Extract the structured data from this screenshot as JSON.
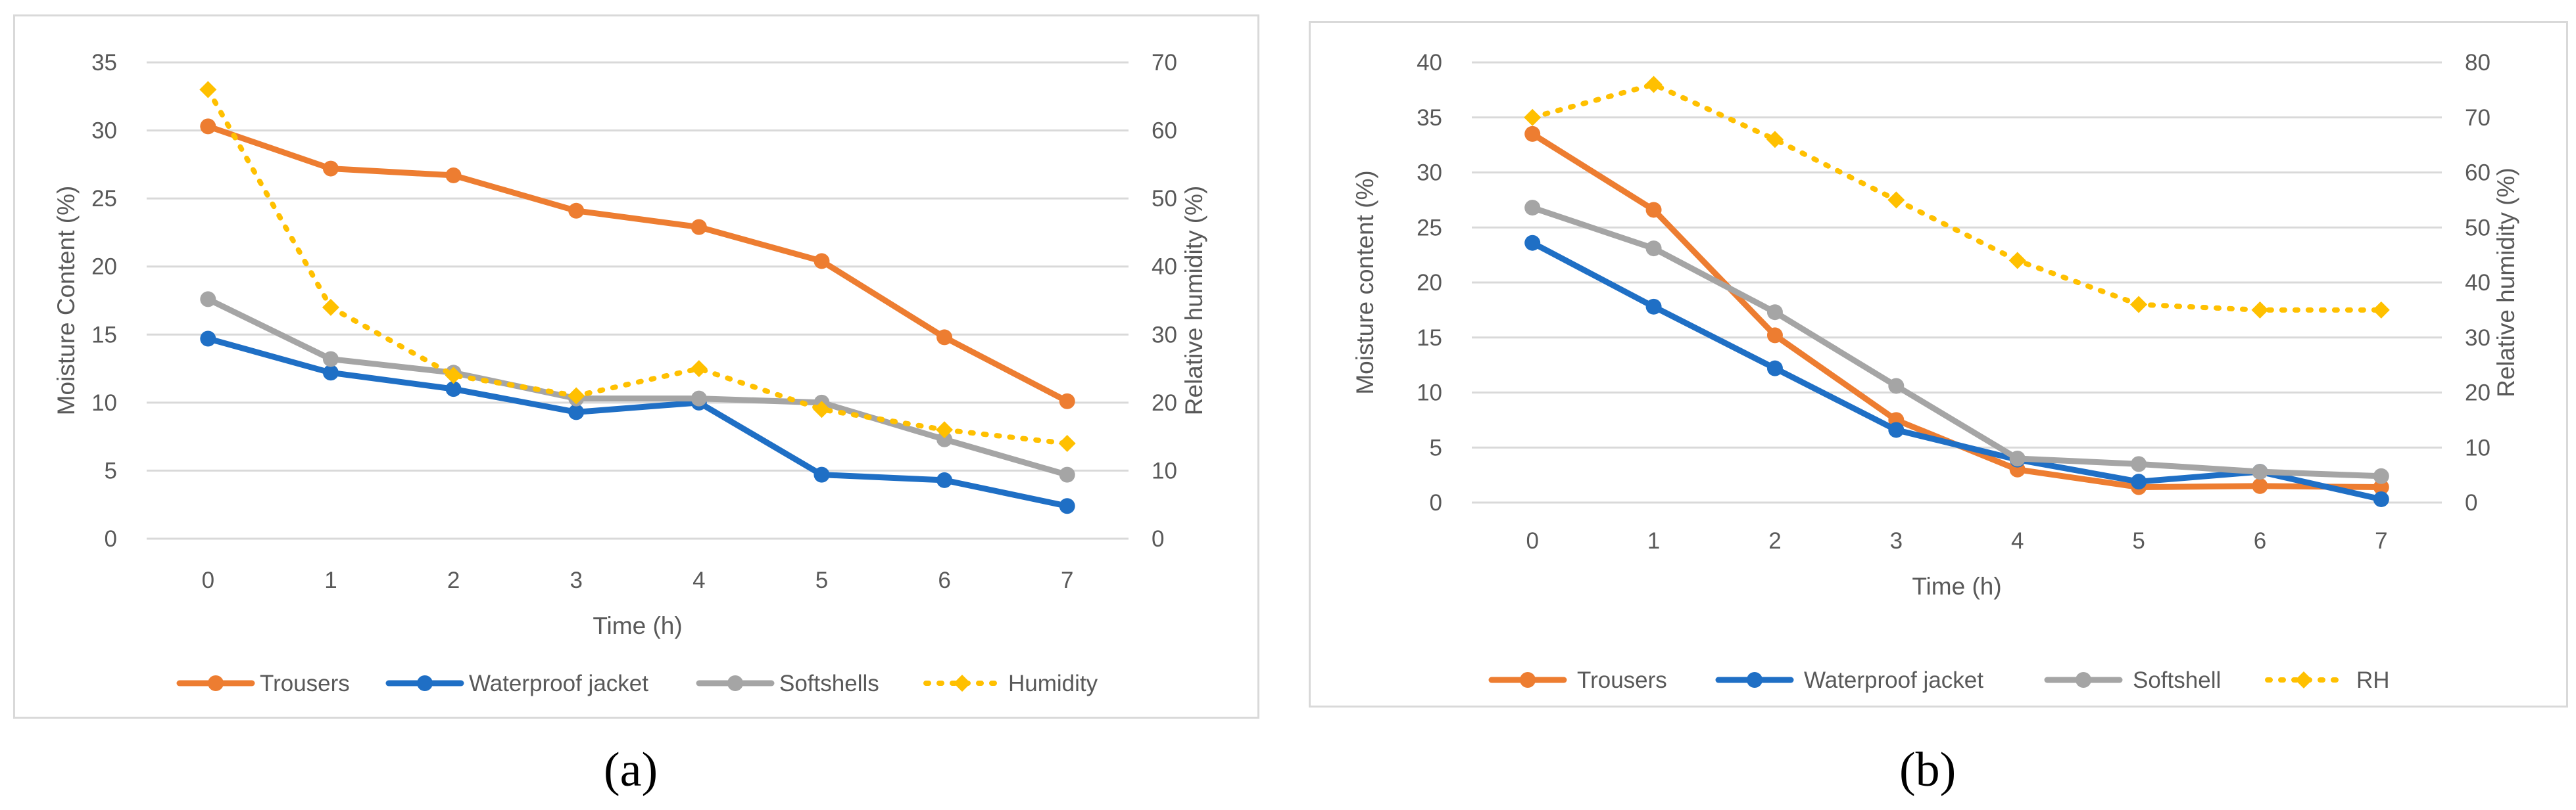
{
  "colors": {
    "trousers": "#ED7D31",
    "jacket": "#1F6FC5",
    "softshell": "#A5A5A5",
    "humidity": "#FFC000",
    "grid": "#d9d9d9",
    "text": "#595959"
  },
  "chart_data": [
    {
      "type": "line",
      "panel_label": "(a)",
      "title": "",
      "xlabel": "Time (h)",
      "ylabel": "Moisture Content (%)",
      "y2label": "Relative humidity (%)",
      "x": [
        0,
        1,
        2,
        3,
        4,
        5,
        6,
        7
      ],
      "ylim": [
        0,
        35
      ],
      "yticks": [
        0,
        5,
        10,
        15,
        20,
        25,
        30,
        35
      ],
      "y2lim": [
        0,
        70
      ],
      "y2ticks": [
        0,
        10,
        20,
        30,
        40,
        50,
        60,
        70
      ],
      "grid": true,
      "legend_position": "bottom",
      "series": [
        {
          "name": "Trousers",
          "axis": "left",
          "color_key": "trousers",
          "style": "solid",
          "values": [
            30.3,
            27.2,
            26.7,
            24.1,
            22.9,
            20.4,
            14.8,
            10.1
          ]
        },
        {
          "name": "Waterproof jacket",
          "axis": "left",
          "color_key": "jacket",
          "style": "solid",
          "values": [
            14.7,
            12.2,
            11.0,
            9.3,
            10.0,
            4.7,
            4.3,
            2.4
          ]
        },
        {
          "name": "Softshells",
          "axis": "left",
          "color_key": "softshell",
          "style": "solid",
          "values": [
            17.6,
            13.2,
            12.2,
            10.3,
            10.3,
            10.0,
            7.3,
            4.7
          ]
        },
        {
          "name": "Humidity",
          "axis": "right",
          "color_key": "humidity",
          "style": "dotted",
          "values": [
            66,
            34,
            24,
            21,
            25,
            19,
            16,
            14
          ]
        }
      ]
    },
    {
      "type": "line",
      "panel_label": "(b)",
      "title": "",
      "xlabel": "Time (h)",
      "ylabel": "Moisture content (%)",
      "y2label": "Relative humidity (%)",
      "x": [
        0,
        1,
        2,
        3,
        4,
        5,
        6,
        7
      ],
      "ylim": [
        0,
        40
      ],
      "yticks": [
        0,
        5,
        10,
        15,
        20,
        25,
        30,
        35,
        40
      ],
      "y2lim": [
        0,
        80
      ],
      "y2ticks": [
        0,
        10,
        20,
        30,
        40,
        50,
        60,
        70,
        80
      ],
      "grid": true,
      "legend_position": "bottom",
      "series": [
        {
          "name": "Trousers",
          "axis": "left",
          "color_key": "trousers",
          "style": "solid",
          "values": [
            33.5,
            26.6,
            15.2,
            7.5,
            3.0,
            1.4,
            1.5,
            1.4
          ]
        },
        {
          "name": "Waterproof jacket",
          "axis": "left",
          "color_key": "jacket",
          "style": "solid",
          "values": [
            23.6,
            17.8,
            12.2,
            6.6,
            3.9,
            1.9,
            2.8,
            0.3
          ]
        },
        {
          "name": "Softshell",
          "axis": "left",
          "color_key": "softshell",
          "style": "solid",
          "values": [
            26.8,
            23.1,
            17.3,
            10.6,
            4.0,
            3.5,
            2.8,
            2.4
          ]
        },
        {
          "name": "RH",
          "axis": "right",
          "color_key": "humidity",
          "style": "dotted",
          "values": [
            70,
            76,
            66,
            55,
            44,
            36,
            35,
            35
          ]
        }
      ]
    }
  ]
}
